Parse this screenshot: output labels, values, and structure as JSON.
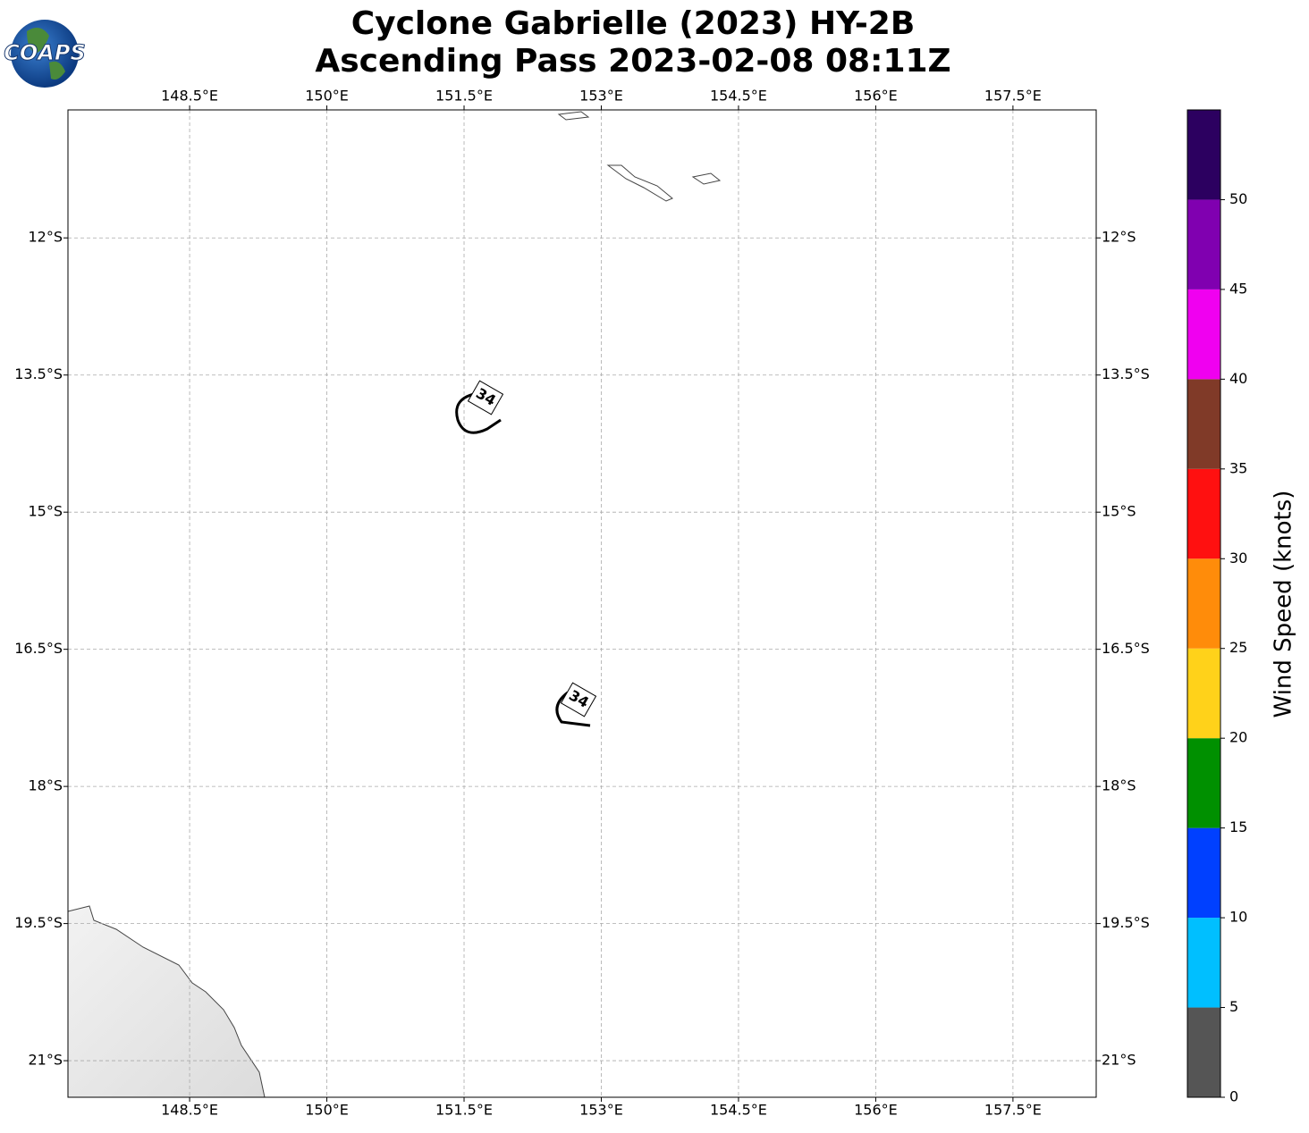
{
  "logo": {
    "text": "COAPS"
  },
  "chart_data": {
    "type": "map",
    "title": [
      "Cyclone Gabrielle (2023) HY-2B",
      "Ascending Pass 2023-02-08 08:11Z"
    ],
    "xlim": [
      147.17,
      158.41
    ],
    "ylim": [
      -10.6,
      -21.4
    ],
    "xticks": [
      {
        "value": 148.5,
        "label": "148.5°E"
      },
      {
        "value": 150,
        "label": "150°E"
      },
      {
        "value": 151.5,
        "label": "151.5°E"
      },
      {
        "value": 153,
        "label": "153°E"
      },
      {
        "value": 154.5,
        "label": "154.5°E"
      },
      {
        "value": 156,
        "label": "156°E"
      },
      {
        "value": 157.5,
        "label": "157.5°E"
      }
    ],
    "yticks": [
      {
        "value": -12,
        "label": "12°S"
      },
      {
        "value": -13.5,
        "label": "13.5°S"
      },
      {
        "value": -15,
        "label": "15°S"
      },
      {
        "value": -16.5,
        "label": "16.5°S"
      },
      {
        "value": -18,
        "label": "18°S"
      },
      {
        "value": -19.5,
        "label": "19.5°S"
      },
      {
        "value": -21,
        "label": "21°S"
      }
    ],
    "grid": true,
    "contour_labels": [
      "34",
      "34"
    ],
    "colorbar": {
      "label": "Wind Speed (knots)",
      "bins": [
        0,
        5,
        10,
        15,
        20,
        25,
        30,
        35,
        40,
        45,
        50,
        55
      ],
      "colors": [
        "#555555",
        "#00bfff",
        "#0040ff",
        "#009000",
        "#ffd21a",
        "#ff8c0a",
        "#ff1010",
        "#803a28",
        "#f000f0",
        "#8000b0",
        "#2c0060"
      ],
      "ticks": [
        0,
        5,
        10,
        15,
        20,
        25,
        30,
        35,
        40,
        45,
        50
      ]
    }
  }
}
